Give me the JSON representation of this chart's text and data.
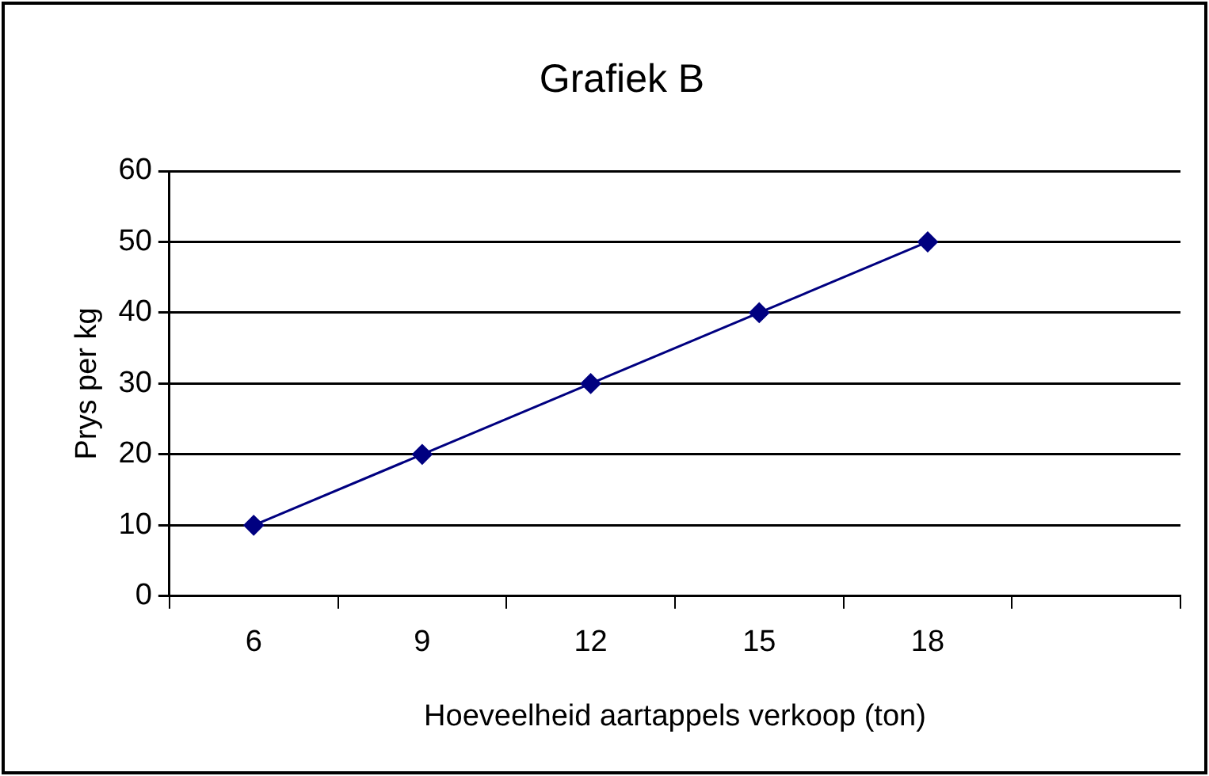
{
  "chart_data": {
    "type": "line",
    "title": "Grafiek B",
    "xlabel": "Hoeveelheid aartappels verkoop (ton)",
    "ylabel": "Prys per kg",
    "categories": [
      "6",
      "9",
      "12",
      "15",
      "18",
      null
    ],
    "series": [
      {
        "color": "#000080",
        "values": [
          10,
          20,
          30,
          40,
          50,
          null
        ]
      }
    ],
    "ylim": [
      0,
      60
    ],
    "yticks": [
      0,
      10,
      20,
      30,
      40,
      50,
      60
    ],
    "grid": "y",
    "marker": "diamond",
    "line_style": "solid"
  }
}
